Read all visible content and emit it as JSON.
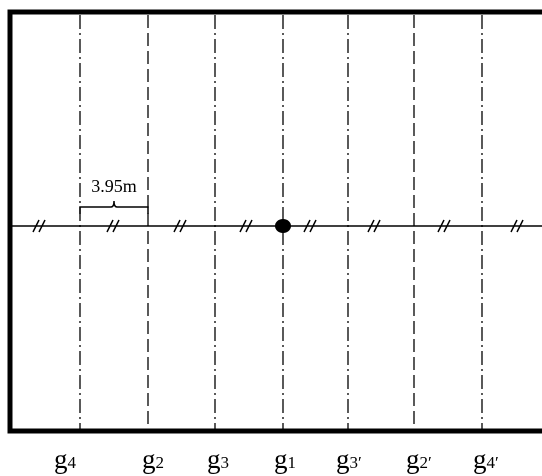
{
  "dimension_label": "3.95m",
  "lines": [
    {
      "id": "g4",
      "base": "g",
      "sub": "4",
      "style": "dash-dot"
    },
    {
      "id": "g2",
      "base": "g",
      "sub": "2",
      "style": "dashed"
    },
    {
      "id": "g3",
      "base": "g",
      "sub": "3",
      "style": "dash-dot"
    },
    {
      "id": "g1",
      "base": "g",
      "sub": "1",
      "style": "dash-dot"
    },
    {
      "id": "g3prime",
      "base": "g",
      "sub": "3′",
      "style": "dash-dot"
    },
    {
      "id": "g2prime",
      "base": "g",
      "sub": "2′",
      "style": "dashed"
    },
    {
      "id": "g4prime",
      "base": "g",
      "sub": "4′",
      "style": "dash-dot"
    }
  ],
  "break_mark": "//"
}
